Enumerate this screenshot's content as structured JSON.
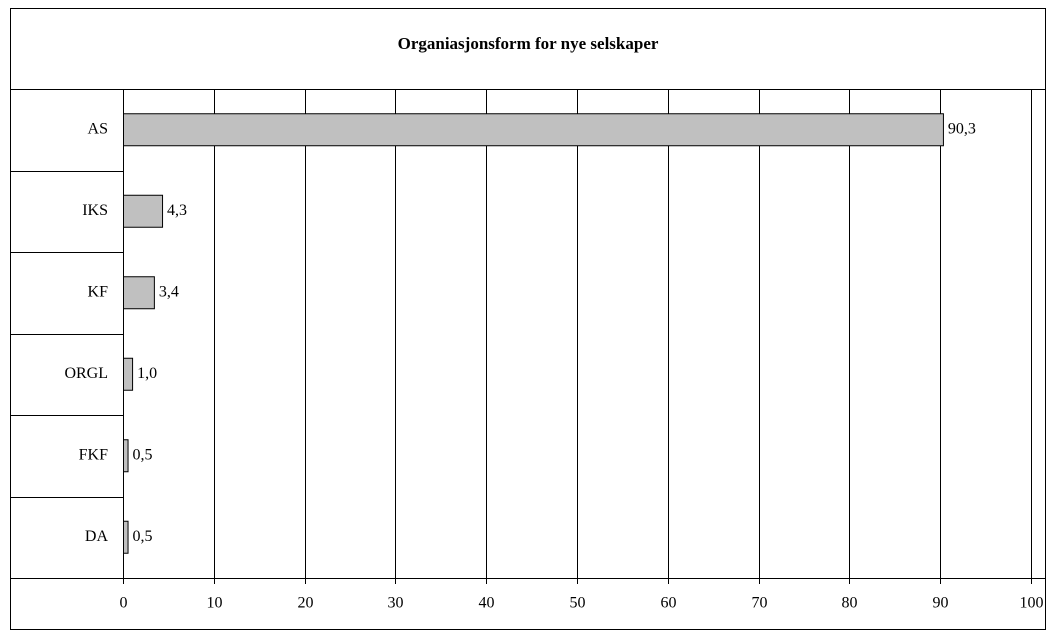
{
  "chart_data": {
    "type": "hbar",
    "title": "Organiasjonsform for nye selskaper",
    "categories": [
      "AS",
      "IKS",
      "KF",
      "ORGL",
      "FKF",
      "DA"
    ],
    "values": [
      90.3,
      4.3,
      3.4,
      1.0,
      0.5,
      0.5
    ],
    "value_labels": [
      "90,3",
      "4,3",
      "3,4",
      "1,0",
      "0,5",
      "0,5"
    ],
    "color": "#c0c0c0",
    "xlim": [
      0,
      100
    ],
    "xticks": [
      0,
      10,
      20,
      30,
      40,
      50,
      60,
      70,
      80,
      90,
      100
    ],
    "grid": true
  }
}
